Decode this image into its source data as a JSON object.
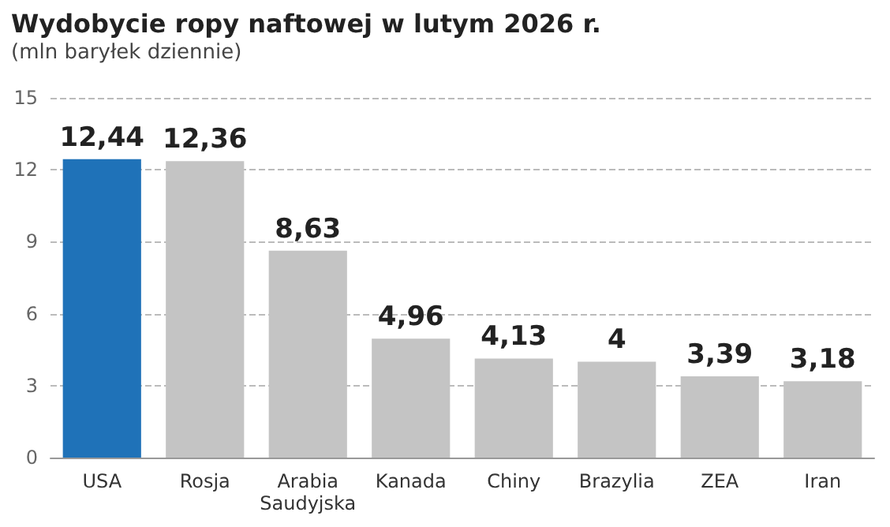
{
  "chart_data": {
    "type": "bar",
    "title": "Wydobycie ropy naftowej w lutym 2026 r.",
    "subtitle": "(mln baryłek dziennie)",
    "categories": [
      "USA",
      "Rosja",
      "Arabia\nSaudyjska",
      "Kanada",
      "Chiny",
      "Brazylia",
      "ZEA",
      "Iran"
    ],
    "values": [
      12.44,
      12.36,
      8.63,
      4.96,
      4.13,
      4,
      3.39,
      3.18
    ],
    "colors": [
      "#1f72b8",
      "#c4c4c4",
      "#c4c4c4",
      "#c4c4c4",
      "#c4c4c4",
      "#c4c4c4",
      "#c4c4c4",
      "#c4c4c4"
    ],
    "value_labels": [
      "12,44",
      "12,36",
      "8,63",
      "4,96",
      "4,13",
      "4",
      "3,39",
      "3,18"
    ],
    "ylim": [
      0,
      15
    ],
    "yticks": [
      0,
      3,
      6,
      9,
      12,
      15
    ],
    "grid": "y"
  }
}
